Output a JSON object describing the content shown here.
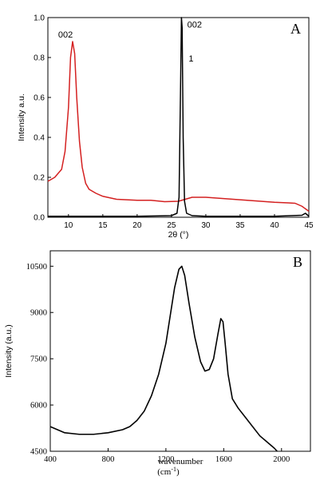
{
  "chart_data": [
    {
      "type": "line",
      "panel_label": "A",
      "xlabel": "2θ (°)",
      "ylabel": "Intensity a.u.",
      "xlim": [
        7,
        45
      ],
      "ylim": [
        0,
        1.0
      ],
      "x_ticks": [
        "10",
        "15",
        "20",
        "25",
        "30",
        "35",
        "40",
        "45"
      ],
      "y_ticks": [
        "0.0",
        "0.2",
        "0.4",
        "0.6",
        "0.8",
        "1.0"
      ],
      "grid": false,
      "annotations": [
        {
          "text": "002",
          "x": 8.5,
          "y": 0.9
        },
        {
          "text": "002",
          "x": 27.3,
          "y": 0.95
        },
        {
          "text": "1",
          "x": 27.5,
          "y": 0.78
        }
      ],
      "series": [
        {
          "color": "#d42020",
          "x": [
            7,
            8,
            9,
            9.5,
            10,
            10.3,
            10.6,
            10.9,
            11.2,
            11.6,
            12,
            12.5,
            13,
            14,
            15,
            17,
            20,
            22,
            24,
            26,
            27,
            28,
            30,
            32,
            34,
            36,
            38,
            40,
            42,
            43,
            44,
            45
          ],
          "y": [
            0.18,
            0.2,
            0.24,
            0.33,
            0.55,
            0.8,
            0.88,
            0.82,
            0.6,
            0.38,
            0.25,
            0.17,
            0.14,
            0.12,
            0.105,
            0.09,
            0.085,
            0.085,
            0.078,
            0.08,
            0.09,
            0.1,
            0.1,
            0.095,
            0.09,
            0.085,
            0.08,
            0.075,
            0.072,
            0.07,
            0.055,
            0.03
          ]
        },
        {
          "color": "#000000",
          "x": [
            7,
            10,
            15,
            20,
            25,
            25.8,
            26.1,
            26.3,
            26.45,
            26.55,
            26.7,
            26.9,
            27.2,
            28,
            30,
            35,
            40,
            44,
            44.5,
            45
          ],
          "y": [
            0.005,
            0.005,
            0.005,
            0.005,
            0.008,
            0.02,
            0.1,
            0.6,
            1.0,
            0.95,
            0.4,
            0.08,
            0.02,
            0.008,
            0.005,
            0.005,
            0.005,
            0.01,
            0.02,
            0.005
          ]
        }
      ]
    },
    {
      "type": "line",
      "panel_label": "B",
      "xlabel": "wavenumber",
      "xlabel_unit": "(cm",
      "xlabel_unit_sup": "-1",
      "xlabel_unit_end": ")",
      "ylabel": "Intensity (a.u.)",
      "xlim": [
        400,
        2200
      ],
      "ylim": [
        4500,
        11000
      ],
      "x_ticks": [
        "400",
        "800",
        "1200",
        "1600",
        "2000"
      ],
      "y_ticks": [
        "4500",
        "6000",
        "7500",
        "9000",
        "10500"
      ],
      "grid": false,
      "series": [
        {
          "color": "#000000",
          "x": [
            400,
            450,
            500,
            600,
            700,
            800,
            900,
            950,
            1000,
            1050,
            1100,
            1150,
            1200,
            1230,
            1260,
            1290,
            1310,
            1330,
            1360,
            1400,
            1440,
            1470,
            1500,
            1530,
            1560,
            1580,
            1595,
            1610,
            1630,
            1660,
            1700,
            1750,
            1800,
            1850,
            1900,
            1950,
            1970
          ],
          "y": [
            5300,
            5200,
            5100,
            5050,
            5050,
            5100,
            5200,
            5300,
            5500,
            5800,
            6300,
            7000,
            8000,
            8900,
            9800,
            10400,
            10500,
            10200,
            9300,
            8200,
            7400,
            7100,
            7150,
            7500,
            8300,
            8800,
            8700,
            8000,
            7000,
            6200,
            5900,
            5600,
            5300,
            5000,
            4800,
            4600,
            4500
          ]
        }
      ]
    }
  ]
}
